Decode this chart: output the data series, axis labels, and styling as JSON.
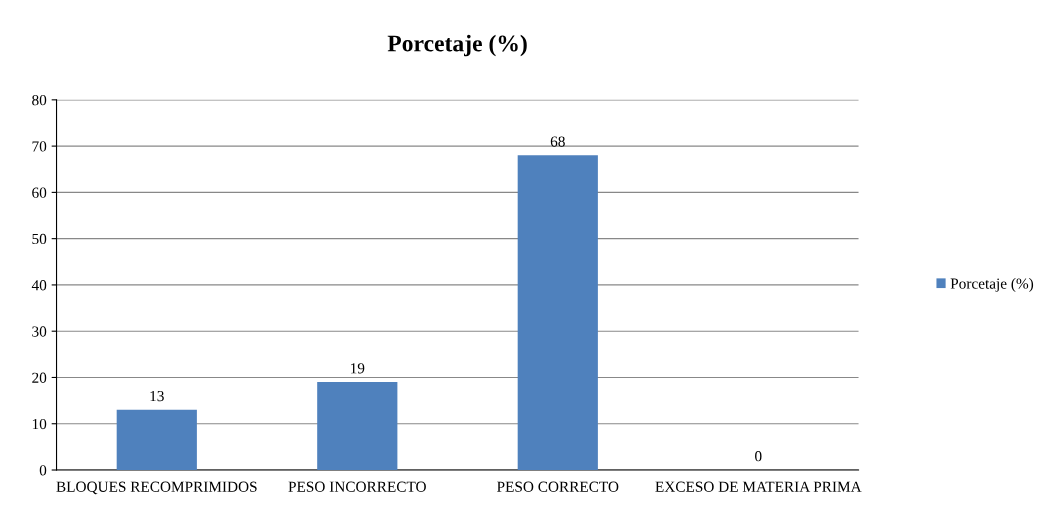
{
  "chart_data": {
    "type": "bar",
    "title": "Porcetaje (%)",
    "categories": [
      "BLOQUES RECOMPRIMIDOS",
      "PESO INCORRECTO",
      "PESO CORRECTO",
      "EXCESO DE MATERIA PRIMA"
    ],
    "series": [
      {
        "name": "Porcetaje (%)",
        "color": "#4f81bd",
        "values": [
          13,
          19,
          68,
          0
        ]
      }
    ],
    "ylim": [
      0,
      80
    ],
    "yticks": [
      0,
      10,
      20,
      30,
      40,
      50,
      60,
      70,
      80
    ],
    "grid": "y",
    "legend": "right",
    "data_labels": true
  }
}
